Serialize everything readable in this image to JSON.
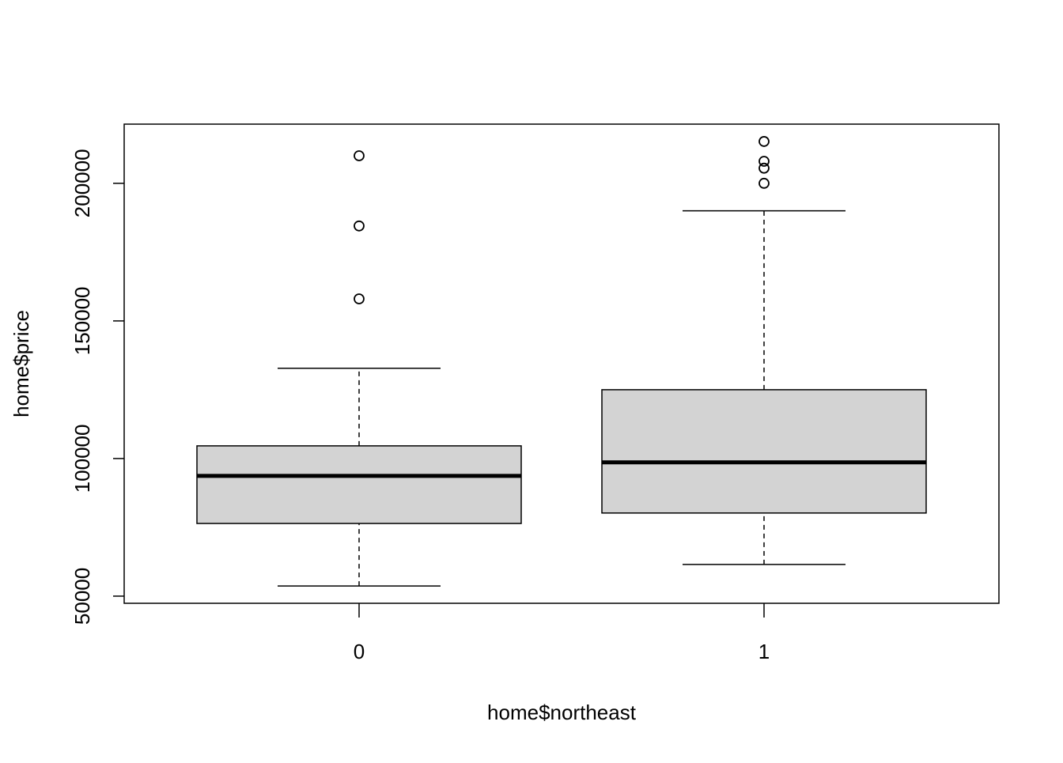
{
  "chart_data": {
    "type": "box",
    "x_label": "home$northeast",
    "y_label": "home$price",
    "categories": [
      "0",
      "1"
    ],
    "boxes": [
      {
        "min": 53700,
        "q1": 76400,
        "median": 93700,
        "q3": 104600,
        "max": 132800,
        "outliers": [
          210000,
          184500,
          158000
        ]
      },
      {
        "min": 61500,
        "q1": 80200,
        "median": 98600,
        "q3": 125000,
        "max": 190000,
        "outliers": [
          215200,
          208000,
          205500,
          200000
        ]
      }
    ],
    "color": "#d3d3d3",
    "ylim": [
      47400,
      221500
    ],
    "yticks": [
      50000,
      100000,
      150000,
      200000
    ]
  }
}
